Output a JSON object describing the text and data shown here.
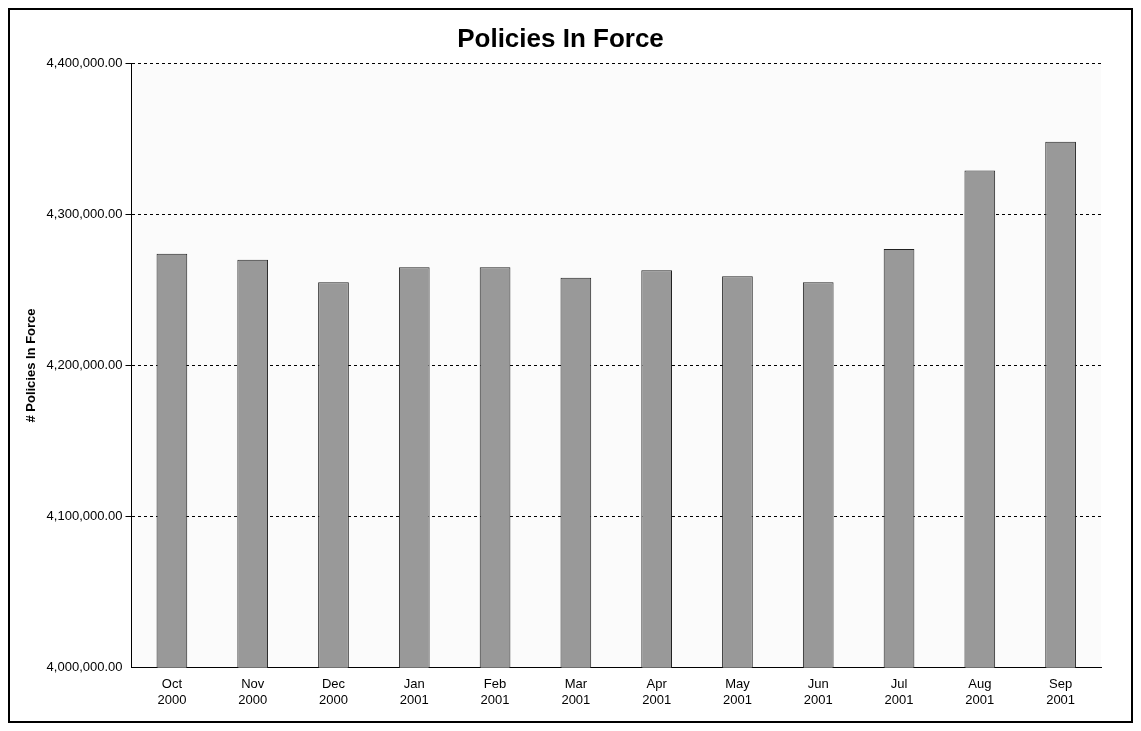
{
  "chart_data": {
    "type": "bar",
    "title": "Policies In Force",
    "ylabel": "# Policies In Force",
    "categories": [
      "Oct 2000",
      "Nov 2000",
      "Dec 2000",
      "Jan 2001",
      "Feb 2001",
      "Mar 2001",
      "Apr 2001",
      "May 2001",
      "Jun 2001",
      "Jul 2001",
      "Aug 2001",
      "Sep 2001"
    ],
    "values": [
      4274000,
      4270000,
      4255000,
      4265000,
      4265000,
      4258000,
      4263000,
      4259000,
      4255000,
      4277000,
      4329000,
      4348000
    ],
    "color": "#999999",
    "ylim": [
      4000000,
      4400000
    ],
    "yticks": [
      {
        "value": 4000000,
        "label": "4,000,000.00"
      },
      {
        "value": 4100000,
        "label": "4,100,000.00"
      },
      {
        "value": 4200000,
        "label": "4,200,000.00"
      },
      {
        "value": 4300000,
        "label": "4,300,000.00"
      },
      {
        "value": 4400000,
        "label": "4,400,000.00"
      }
    ],
    "grid": "y",
    "line_style": "dotted",
    "legend": false
  }
}
